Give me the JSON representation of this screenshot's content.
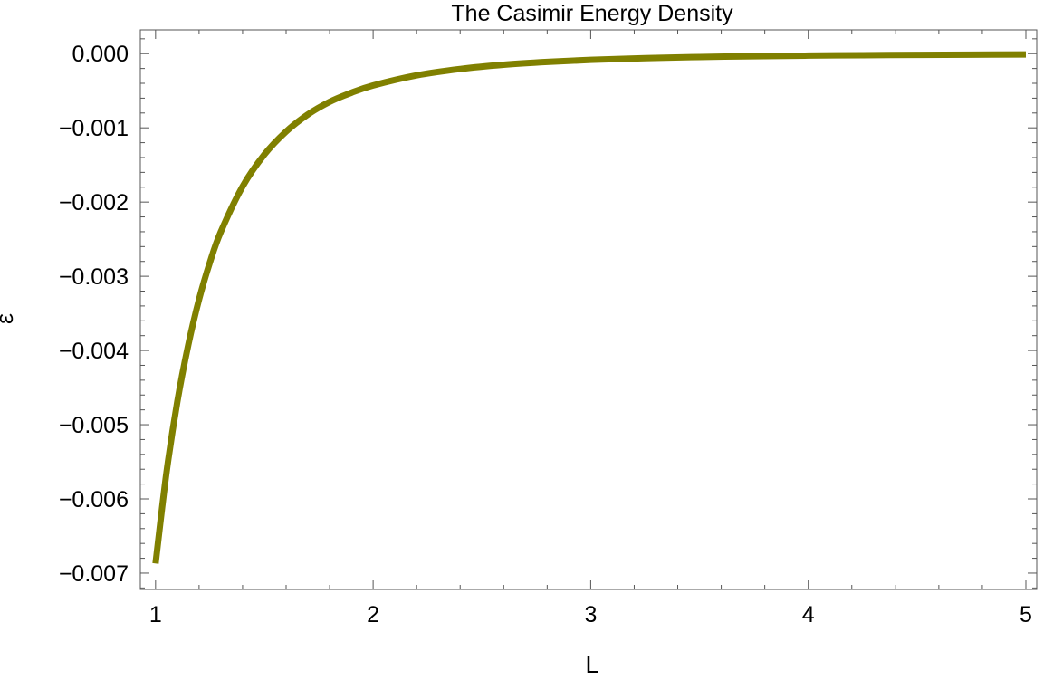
{
  "chart_data": {
    "type": "line",
    "title": "The Casimir Energy Density",
    "xlabel": "L",
    "ylabel": "ε",
    "xlim": [
      0.93,
      5.05
    ],
    "ylim": [
      -0.00722,
      0.00032
    ],
    "x_ticks": [
      1,
      2,
      3,
      4,
      5
    ],
    "x_tick_labels": [
      "1",
      "2",
      "3",
      "4",
      "5"
    ],
    "y_ticks": [
      0.0,
      -0.001,
      -0.002,
      -0.003,
      -0.004,
      -0.005,
      -0.006,
      -0.007
    ],
    "y_tick_labels": [
      "0.000",
      "−0.001",
      "−0.002",
      "−0.003",
      "−0.004",
      "−0.005",
      "−0.006",
      "−0.007"
    ],
    "grid": false,
    "legend": "none",
    "series": [
      {
        "color": "#808000",
        "x": [
          1.0,
          1.05,
          1.1,
          1.15,
          1.2,
          1.25,
          1.3,
          1.4,
          1.5,
          1.6,
          1.7,
          1.8,
          1.9,
          2.0,
          2.2,
          2.4,
          2.6,
          2.8,
          3.0,
          3.25,
          3.5,
          3.75,
          4.0,
          4.25,
          4.5,
          4.75,
          5.0
        ],
        "y": [
          -0.00687,
          -0.00565,
          -0.00469,
          -0.00393,
          -0.00331,
          -0.00281,
          -0.0024,
          -0.00179,
          -0.00136,
          -0.00105,
          -0.00082,
          -0.00065,
          -0.000527,
          -0.000429,
          -0.000293,
          -0.000207,
          -0.00015,
          -0.000112,
          -8.48e-05,
          -6.15e-05,
          -4.57e-05,
          -3.47e-05,
          -2.68e-05,
          -2.11e-05,
          -1.68e-05,
          -1.35e-05,
          -1.1e-05
        ]
      }
    ]
  }
}
